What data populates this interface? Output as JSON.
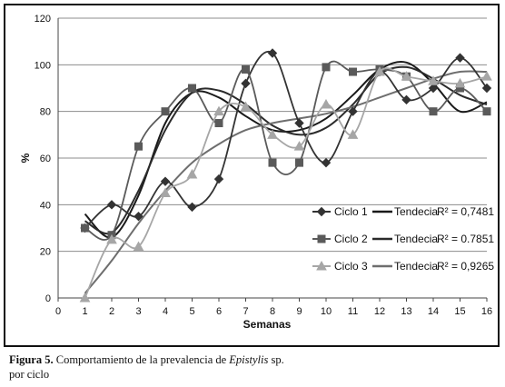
{
  "chart_data": {
    "type": "line",
    "title": "",
    "xlabel": "Semanas",
    "ylabel": "%",
    "x": [
      1,
      2,
      3,
      4,
      5,
      6,
      7,
      8,
      9,
      10,
      11,
      12,
      13,
      14,
      15,
      16
    ],
    "xlim": [
      0,
      16
    ],
    "ylim": [
      0,
      120
    ],
    "xticks": [
      "0",
      "1",
      "2",
      "3",
      "4",
      "5",
      "6",
      "7",
      "8",
      "9",
      "10",
      "11",
      "12",
      "13",
      "14",
      "15",
      "16"
    ],
    "yticks": [
      "0",
      "20",
      "40",
      "60",
      "80",
      "100",
      "120"
    ],
    "grid": "horizontal",
    "legend_position": "right",
    "series": [
      {
        "name": "Ciclo 1",
        "marker": "diamond",
        "color": "#333333",
        "values": [
          30,
          40,
          35,
          50,
          39,
          51,
          92,
          105,
          75,
          58,
          80,
          97,
          85,
          90,
          103,
          90
        ],
        "trend_label": "Tendecia",
        "trend_r2": "R² = 0,7481",
        "trend_values": [
          36,
          26,
          44,
          75,
          88,
          86,
          78,
          72,
          72,
          77,
          87,
          98,
          101,
          92,
          80,
          84
        ]
      },
      {
        "name": "Ciclo 2",
        "marker": "square",
        "color": "#5a5a5a",
        "values": [
          30,
          27,
          65,
          80,
          90,
          75,
          98,
          58,
          58,
          99,
          97,
          98,
          95,
          80,
          90,
          80
        ],
        "trend_label": "Tendecia",
        "trend_r2": "R² = 0.7851",
        "trend_values": [
          33,
          28,
          46,
          72,
          88,
          89,
          83,
          74,
          70,
          73,
          83,
          96,
          99,
          94,
          87,
          83
        ]
      },
      {
        "name": "Ciclo 3",
        "marker": "triangle",
        "color": "#a6a6a6",
        "values": [
          0,
          25,
          22,
          45,
          53,
          80,
          82,
          70,
          65,
          83,
          70,
          97,
          95,
          93,
          92,
          95
        ],
        "trend_label": "Tendecia",
        "trend_r2": "R² = 0,9265",
        "trend_values": [
          2,
          16,
          32,
          46,
          58,
          66,
          72,
          75,
          77,
          79,
          82,
          86,
          90,
          94,
          97,
          97
        ]
      }
    ]
  },
  "caption": {
    "figure_label": "Figura 5.",
    "text_before_italic": " Comportamiento de la prevalencia de ",
    "italic": "Epistylis",
    "text_after_italic": " sp.",
    "line2": "por ciclo"
  }
}
